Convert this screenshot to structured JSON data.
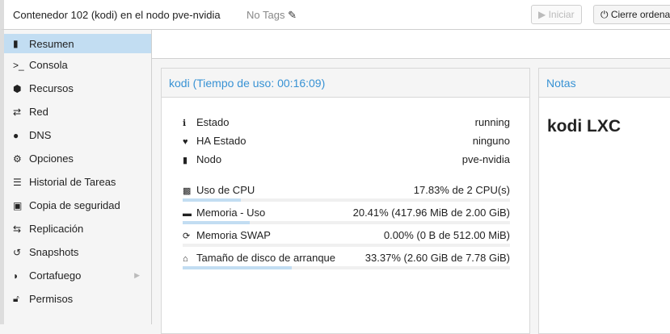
{
  "header": {
    "title": "Contenedor 102 (kodi) en el nodo pve-nvidia",
    "tags": "No Tags",
    "start_label": "Iniciar",
    "shutdown_label": "Cierre ordena"
  },
  "sidebar": {
    "items": [
      {
        "label": "Resumen",
        "icon": "book-icon"
      },
      {
        "label": "Consola",
        "icon": "terminal-icon"
      },
      {
        "label": "Recursos",
        "icon": "cube-icon"
      },
      {
        "label": "Red",
        "icon": "exchange-icon"
      },
      {
        "label": "DNS",
        "icon": "globe-icon"
      },
      {
        "label": "Opciones",
        "icon": "gear-icon"
      },
      {
        "label": "Historial de Tareas",
        "icon": "list-icon"
      },
      {
        "label": "Copia de seguridad",
        "icon": "floppy-icon"
      },
      {
        "label": "Replicación",
        "icon": "retweet-icon"
      },
      {
        "label": "Snapshots",
        "icon": "history-icon"
      },
      {
        "label": "Cortafuego",
        "icon": "shield-icon"
      },
      {
        "label": "Permisos",
        "icon": "unlock-icon"
      }
    ]
  },
  "status": {
    "title": "kodi (Tiempo de uso: 00:16:09)",
    "info": [
      {
        "label": "Estado",
        "value": "running"
      },
      {
        "label": "HA Estado",
        "value": "ninguno"
      },
      {
        "label": "Nodo",
        "value": "pve-nvidia"
      }
    ],
    "usage": [
      {
        "label": "Uso de CPU",
        "value": "17.83% de 2 CPU(s)",
        "percent": 17.83
      },
      {
        "label": "Memoria - Uso",
        "value": "20.41% (417.96 MiB de 2.00 GiB)",
        "percent": 20.41
      },
      {
        "label": "Memoria SWAP",
        "value": "0.00% (0 B de 512.00 MiB)",
        "percent": 0
      },
      {
        "label": "Tamaño de disco de arranque",
        "value": "33.37% (2.60 GiB de 7.78 GiB)",
        "percent": 33.37
      }
    ]
  },
  "notes": {
    "title": "Notas",
    "content": "kodi LXC"
  },
  "colors": {
    "accent": "#3892d4",
    "selected": "#c2ddf2"
  }
}
